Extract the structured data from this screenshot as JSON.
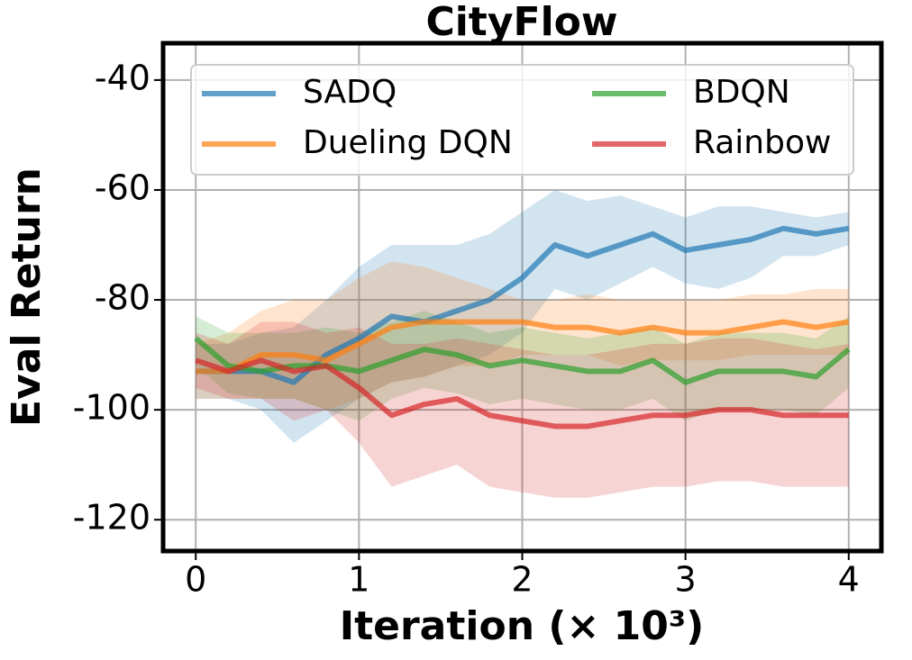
{
  "chart_data": {
    "type": "line",
    "title": "CityFlow",
    "xlabel": "Iteration (× 10³)",
    "ylabel": "Eval Return",
    "x": [
      0,
      0.2,
      0.4,
      0.6,
      0.8,
      1.0,
      1.2,
      1.4,
      1.6,
      1.8,
      2.0,
      2.2,
      2.4,
      2.6,
      2.8,
      3.0,
      3.2,
      3.4,
      3.6,
      3.8,
      4.0
    ],
    "xlim": [
      -0.2,
      4.2
    ],
    "xticks": [
      0,
      1,
      2,
      3,
      4
    ],
    "ylim": [
      -125.7,
      -33.3
    ],
    "yticks": [
      -120,
      -100,
      -80,
      -60,
      -40
    ],
    "grid": true,
    "legend_loc": "upper left",
    "series": [
      {
        "name": "SADQ",
        "color": "#1f77b4",
        "values": [
          -93,
          -93,
          -93,
          -95,
          -90,
          -87,
          -83,
          -84,
          -82,
          -80,
          -76,
          -70,
          -72,
          -70,
          -68,
          -71,
          -70,
          -69,
          -67,
          -68,
          -67
        ],
        "upper": [
          -88,
          -88,
          -86,
          -85,
          -80,
          -74,
          -70,
          -70,
          -70,
          -68,
          -64,
          -60,
          -62,
          -61,
          -63,
          -65,
          -63,
          -63,
          -64,
          -65,
          -64
        ],
        "lower": [
          -98,
          -98,
          -100,
          -106,
          -102,
          -98,
          -95,
          -94,
          -92,
          -90,
          -86,
          -78,
          -80,
          -77,
          -74,
          -77,
          -78,
          -76,
          -72,
          -72,
          -70
        ]
      },
      {
        "name": "Dueling DQN",
        "color": "#ff7f0e",
        "values": [
          -93,
          -93,
          -90,
          -90,
          -91,
          -88,
          -85,
          -84,
          -84,
          -84,
          -84,
          -85,
          -85,
          -86,
          -85,
          -86,
          -86,
          -85,
          -84,
          -85,
          -84
        ],
        "upper": [
          -88,
          -86,
          -82,
          -80,
          -80,
          -76,
          -73,
          -74,
          -76,
          -78,
          -80,
          -80,
          -79,
          -80,
          -80,
          -80,
          -80,
          -79,
          -79,
          -78,
          -78
        ],
        "lower": [
          -98,
          -98,
          -98,
          -98,
          -100,
          -98,
          -95,
          -94,
          -92,
          -92,
          -90,
          -90,
          -90,
          -92,
          -91,
          -91,
          -91,
          -90,
          -90,
          -90,
          -90
        ]
      },
      {
        "name": "BDQN",
        "color": "#2ca02c",
        "values": [
          -87,
          -92,
          -93,
          -92,
          -92,
          -93,
          -91,
          -89,
          -90,
          -92,
          -91,
          -92,
          -93,
          -93,
          -91,
          -95,
          -93,
          -93,
          -93,
          -94,
          -89
        ],
        "upper": [
          -83,
          -86,
          -86,
          -86,
          -85,
          -86,
          -84,
          -82,
          -84,
          -86,
          -85,
          -86,
          -87,
          -86,
          -85,
          -88,
          -86,
          -86,
          -86,
          -87,
          -83
        ],
        "lower": [
          -92,
          -97,
          -98,
          -98,
          -100,
          -102,
          -98,
          -96,
          -97,
          -99,
          -98,
          -99,
          -100,
          -100,
          -98,
          -102,
          -100,
          -100,
          -100,
          -101,
          -96
        ]
      },
      {
        "name": "Rainbow",
        "color": "#d62728",
        "values": [
          -91,
          -93,
          -91,
          -93,
          -92,
          -96,
          -101,
          -99,
          -98,
          -101,
          -102,
          -103,
          -103,
          -102,
          -101,
          -101,
          -100,
          -100,
          -101,
          -101,
          -101
        ],
        "upper": [
          -86,
          -88,
          -84,
          -84,
          -86,
          -85,
          -88,
          -88,
          -87,
          -88,
          -89,
          -90,
          -90,
          -89,
          -88,
          -88,
          -87,
          -87,
          -88,
          -89,
          -88
        ],
        "lower": [
          -96,
          -98,
          -98,
          -102,
          -100,
          -106,
          -114,
          -112,
          -110,
          -114,
          -115,
          -116,
          -116,
          -115,
          -114,
          -114,
          -113,
          -113,
          -114,
          -114,
          -114
        ]
      }
    ]
  }
}
